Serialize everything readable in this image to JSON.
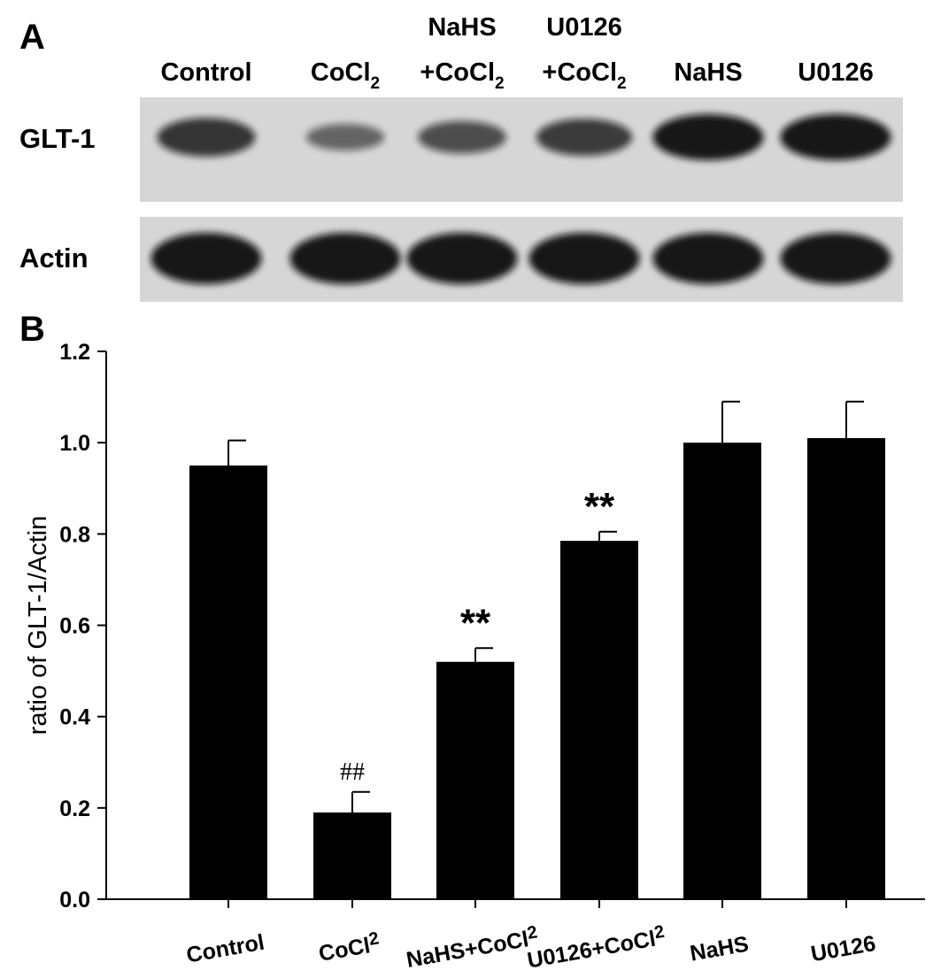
{
  "panel_a": {
    "label": "A",
    "lanes": [
      {
        "line1": "",
        "line2": "Control"
      },
      {
        "line1": "",
        "line2": "CoCl",
        "sub": "2"
      },
      {
        "line1": "NaHS",
        "line2": "+CoCl",
        "sub": "2"
      },
      {
        "line1": "U0126",
        "line2": "+CoCl",
        "sub": "2"
      },
      {
        "line1": "",
        "line2": "NaHS"
      },
      {
        "line1": "",
        "line2": "U0126"
      }
    ],
    "rows": [
      {
        "label": "GLT-1",
        "band_intensity": [
          0.75,
          0.35,
          0.55,
          0.7,
          1.0,
          1.0
        ]
      },
      {
        "label": "Actin",
        "band_intensity": [
          1.0,
          1.0,
          1.0,
          1.0,
          1.0,
          1.0
        ]
      }
    ]
  },
  "chart_data": {
    "panel_label": "B",
    "type": "bar",
    "categories": [
      {
        "main": "Control",
        "sub": ""
      },
      {
        "main": "CoCl",
        "sub": "2"
      },
      {
        "main": "NaHS+CoCl",
        "sub": "2"
      },
      {
        "main": "U0126+CoCl",
        "sub": "2"
      },
      {
        "main": "NaHS",
        "sub": ""
      },
      {
        "main": "U0126",
        "sub": ""
      }
    ],
    "values": [
      0.95,
      0.19,
      0.52,
      0.785,
      1.0,
      1.01
    ],
    "errors": [
      0.055,
      0.045,
      0.03,
      0.02,
      0.09,
      0.08
    ],
    "annotations": [
      "",
      "##",
      "**",
      "**",
      "",
      ""
    ],
    "ylabel": "ratio of GLT-1/Actin",
    "xlabel": "",
    "ylim": [
      0,
      1.2
    ],
    "yticks": [
      "0.0",
      "0.2",
      "0.4",
      "0.6",
      "0.8",
      "1.0",
      "1.2"
    ],
    "bar_color": "#000000",
    "grid": false
  }
}
